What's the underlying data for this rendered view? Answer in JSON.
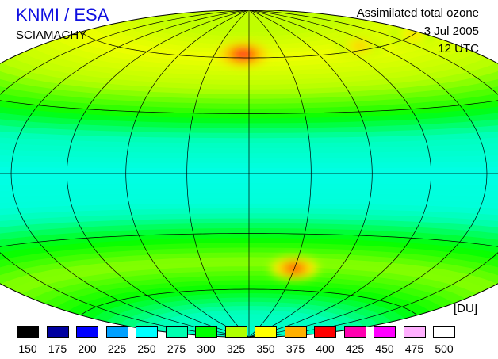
{
  "header": {
    "organization": "KNMI / ESA",
    "instrument": "SCIAMACHY",
    "product": "Assimilated total ozone",
    "date": "3 Jul 2005",
    "time": "12 UTC"
  },
  "legend": {
    "unit": "[DU]",
    "entries": [
      {
        "label": "150",
        "color": "#000000"
      },
      {
        "label": "175",
        "color": "#0000a0"
      },
      {
        "label": "200",
        "color": "#0000ff"
      },
      {
        "label": "225",
        "color": "#00a0ff"
      },
      {
        "label": "250",
        "color": "#00ffff"
      },
      {
        "label": "275",
        "color": "#00ffb0"
      },
      {
        "label": "300",
        "color": "#00ff00"
      },
      {
        "label": "325",
        "color": "#b0ff00"
      },
      {
        "label": "350",
        "color": "#ffff00"
      },
      {
        "label": "375",
        "color": "#ffb000"
      },
      {
        "label": "400",
        "color": "#ff0000"
      },
      {
        "label": "425",
        "color": "#ff00b0"
      },
      {
        "label": "450",
        "color": "#ff00ff"
      },
      {
        "label": "475",
        "color": "#ffb0ff"
      },
      {
        "label": "500",
        "color": "#ffffff"
      }
    ]
  },
  "map": {
    "projection": "Hammer-Aitoff",
    "graticule_step_degrees": 30,
    "latitude_bands": [
      {
        "lat": 90,
        "du": 330
      },
      {
        "lat": 75,
        "du": 330
      },
      {
        "lat": 60,
        "du": 345
      },
      {
        "lat": 45,
        "du": 330
      },
      {
        "lat": 30,
        "du": 305
      },
      {
        "lat": 15,
        "du": 270
      },
      {
        "lat": 0,
        "du": 258
      },
      {
        "lat": -15,
        "du": 262
      },
      {
        "lat": -30,
        "du": 295
      },
      {
        "lat": -45,
        "du": 320
      },
      {
        "lat": -60,
        "du": 300
      },
      {
        "lat": -75,
        "du": 270
      },
      {
        "lat": -90,
        "du": 265
      }
    ],
    "ozone_maxima": [
      {
        "lon": -5,
        "lat": 62,
        "du": 405
      },
      {
        "lon": 30,
        "lat": -48,
        "du": 395
      },
      {
        "lon": 105,
        "lat": 62,
        "du": 370
      },
      {
        "lon": 170,
        "lat": 60,
        "du": 365
      }
    ]
  }
}
